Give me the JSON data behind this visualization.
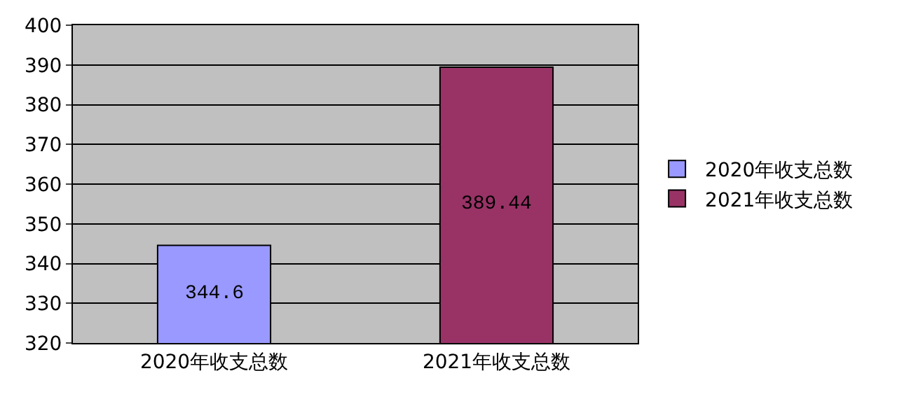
{
  "chart_data": {
    "type": "bar",
    "categories": [
      "2020年收支总数",
      "2021年收支总数"
    ],
    "series": [
      {
        "name": "2020年收支总数",
        "color": "#9999ff",
        "values": [
          344.6,
          null
        ]
      },
      {
        "name": "2021年收支总数",
        "color": "#993366",
        "values": [
          null,
          389.44
        ]
      }
    ],
    "ylim": [
      320,
      400
    ],
    "yticks": [
      320,
      330,
      340,
      350,
      360,
      370,
      380,
      390,
      400
    ],
    "grid": "y",
    "legend": "right",
    "data_labels": true
  }
}
